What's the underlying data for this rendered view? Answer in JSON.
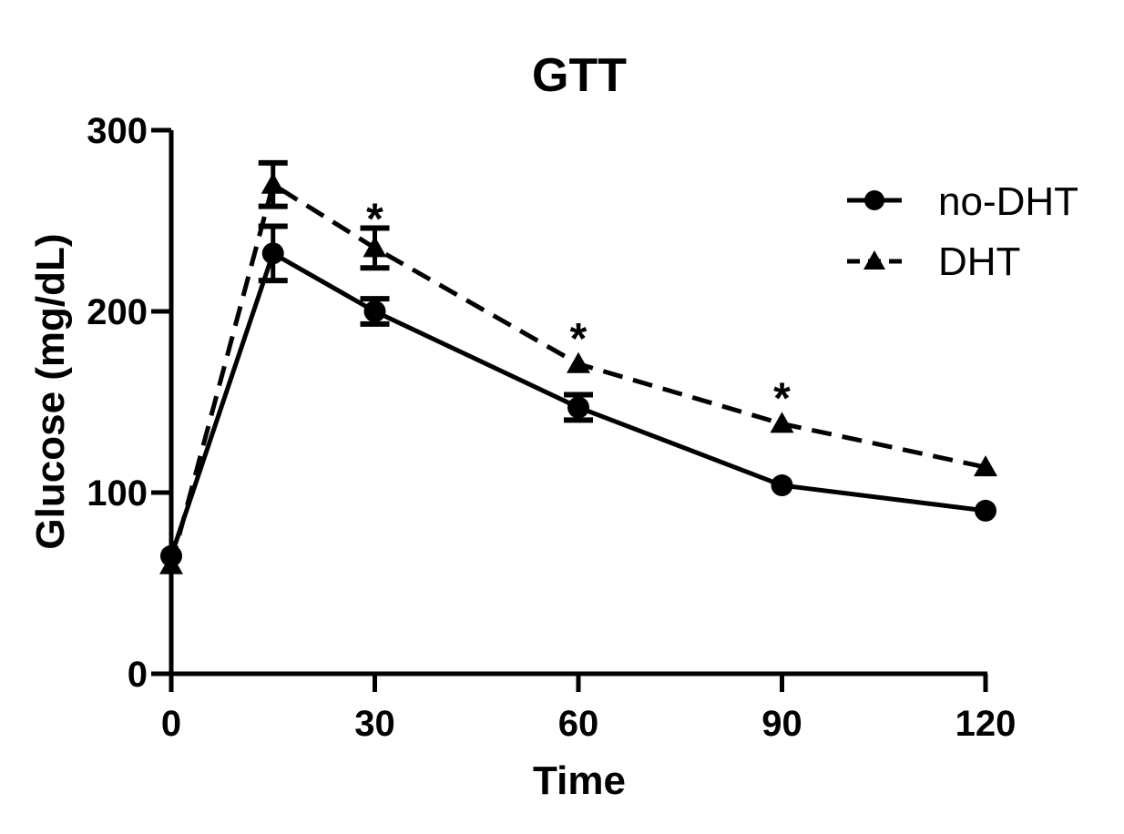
{
  "chart_data": {
    "type": "line",
    "title": "GTT",
    "xlabel": "Time",
    "ylabel": "Glucose (mg/dL)",
    "xlim": [
      0,
      120
    ],
    "ylim": [
      0,
      300
    ],
    "xticks": [
      0,
      30,
      60,
      90,
      120
    ],
    "yticks": [
      0,
      100,
      200,
      300
    ],
    "grid": false,
    "legend_position": "top-right",
    "series": [
      {
        "name": "no-DHT",
        "marker": "circle",
        "line": "solid",
        "color": "#000000",
        "x": [
          0,
          15,
          30,
          60,
          90,
          120
        ],
        "y": [
          65,
          232,
          200,
          147,
          104,
          90
        ],
        "err": [
          0,
          15,
          7,
          7,
          0,
          0
        ]
      },
      {
        "name": "DHT",
        "marker": "triangle",
        "line": "dashed",
        "color": "#000000",
        "x": [
          0,
          15,
          30,
          60,
          90,
          120
        ],
        "y": [
          60,
          270,
          235,
          171,
          138,
          114
        ],
        "err": [
          0,
          12,
          11,
          0,
          0,
          0
        ]
      }
    ],
    "annotations": [
      {
        "text": "*",
        "x": 30,
        "y": 252
      },
      {
        "text": "*",
        "x": 60,
        "y": 186
      },
      {
        "text": "*",
        "x": 90,
        "y": 153
      }
    ]
  }
}
